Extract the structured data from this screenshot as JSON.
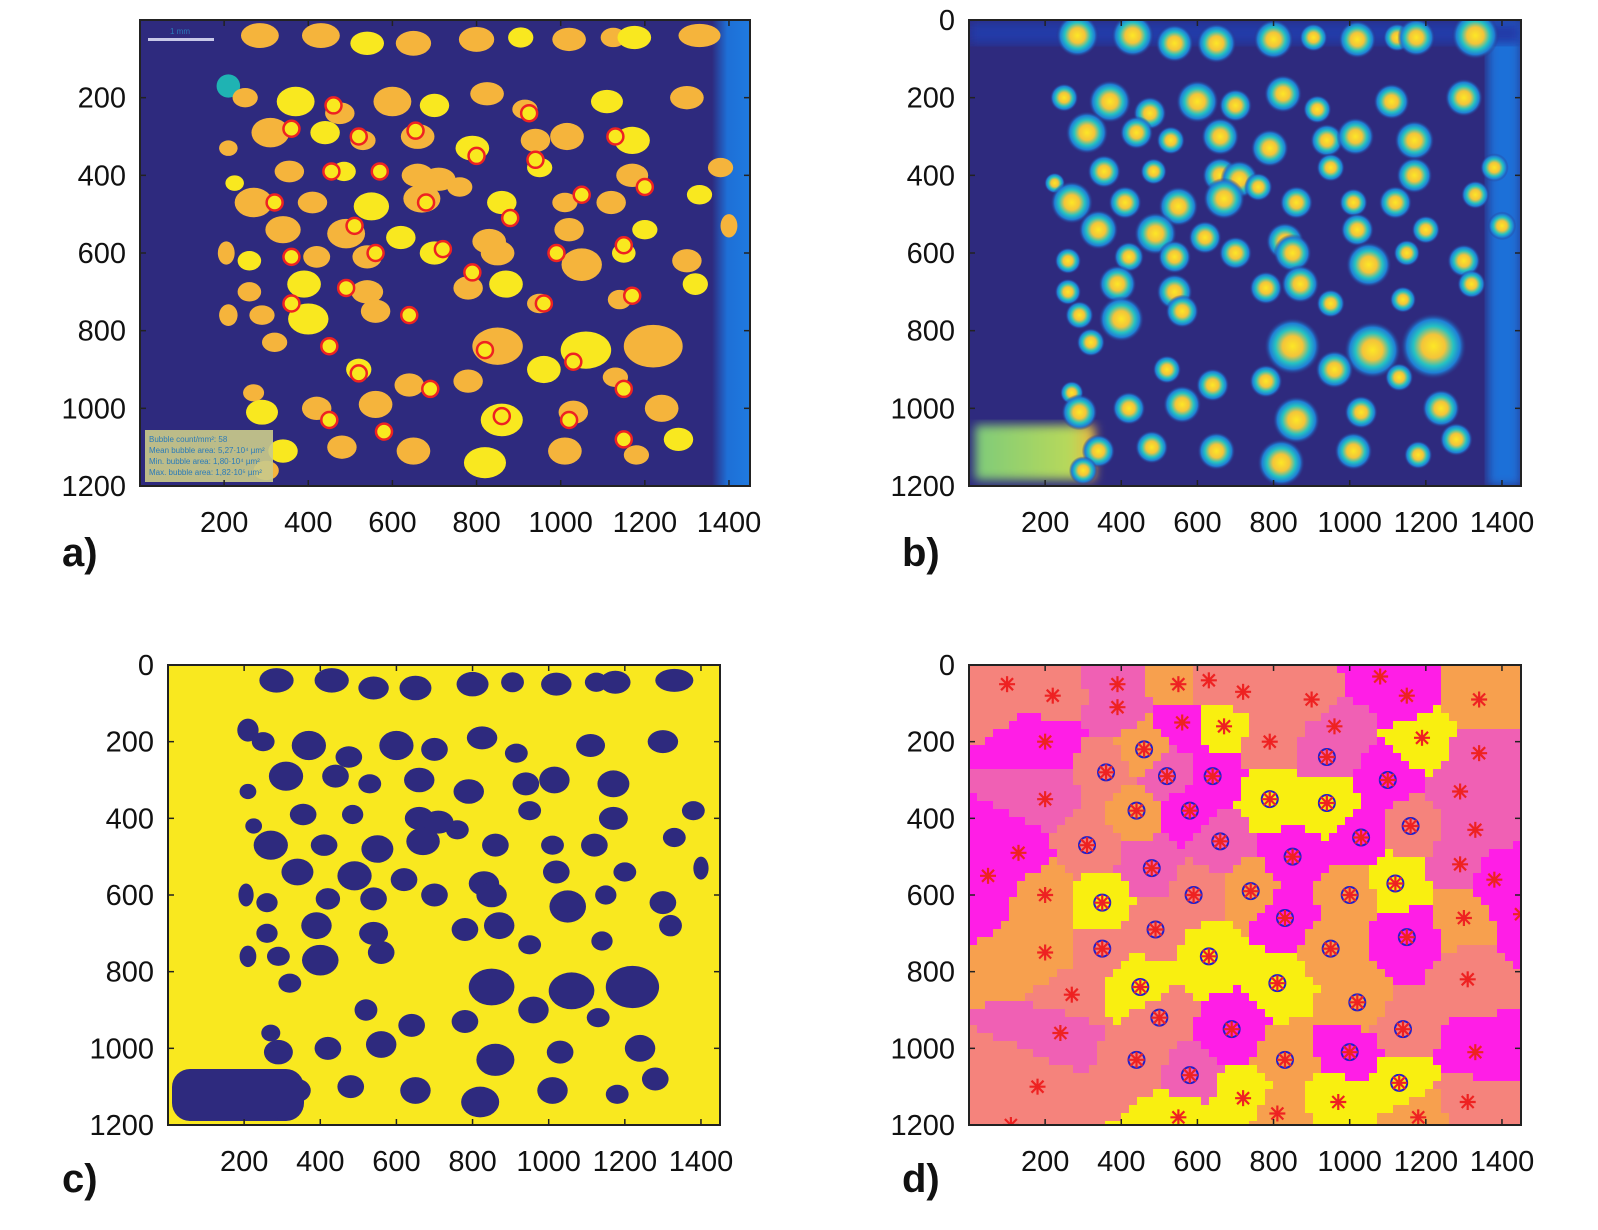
{
  "figure": {
    "panels": [
      {
        "id": "a",
        "label": "a)"
      },
      {
        "id": "b",
        "label": "b)"
      },
      {
        "id": "c",
        "label": "c)"
      },
      {
        "id": "d",
        "label": "d)"
      }
    ]
  },
  "colors": {
    "background_dark": "#2e2a7e",
    "bubble_orange": "#f5b43c",
    "bubble_yellow": "#f9e81f",
    "marker_red": "#ee2222",
    "marker_blue": "#2020cc",
    "edge_blue": "#1f6fd8",
    "cell_magenta": "#ff1ee6",
    "cell_pink": "#f060b4",
    "cell_salmon": "#f5837c",
    "cell_orange": "#f7a04e",
    "cell_yellow": "#f9ef10"
  },
  "panel_a": {
    "legend_lines": [
      "Bubble count/mm²: 58",
      "Mean bubble area: 5,27·10⁴ µm²",
      "Min. bubble area: 1,80·10⁴ µm²",
      "Max. bubble area: 1,82·10⁵ µm²"
    ],
    "scale_bar_label": "1 mm"
  },
  "chart_data": [
    {
      "panel": "a",
      "type": "heatmap",
      "title": "",
      "xlabel": "",
      "ylabel": "",
      "xlim": [
        0,
        1450
      ],
      "ylim": [
        1200,
        0
      ],
      "xticks": [
        200,
        400,
        600,
        800,
        1000,
        1200,
        1400
      ],
      "yticks": [
        200,
        400,
        600,
        800,
        1000,
        1200
      ],
      "grid": false,
      "bubbles": [
        [
          210,
          170,
          28,
          30
        ],
        [
          285,
          40,
          45,
          32
        ],
        [
          430,
          40,
          45,
          32
        ],
        [
          540,
          60,
          40,
          30
        ],
        [
          650,
          60,
          42,
          32
        ],
        [
          800,
          50,
          42,
          32
        ],
        [
          905,
          45,
          30,
          26
        ],
        [
          1020,
          50,
          40,
          30
        ],
        [
          1125,
          45,
          30,
          25
        ],
        [
          1175,
          45,
          40,
          30
        ],
        [
          1330,
          40,
          50,
          30
        ],
        [
          250,
          200,
          30,
          25
        ],
        [
          370,
          210,
          45,
          38
        ],
        [
          475,
          240,
          35,
          28
        ],
        [
          600,
          210,
          45,
          38
        ],
        [
          700,
          220,
          35,
          30
        ],
        [
          825,
          190,
          40,
          30
        ],
        [
          915,
          230,
          30,
          25
        ],
        [
          1110,
          210,
          38,
          30
        ],
        [
          1300,
          200,
          40,
          30
        ],
        [
          310,
          290,
          45,
          38
        ],
        [
          440,
          290,
          35,
          30
        ],
        [
          530,
          310,
          30,
          25
        ],
        [
          660,
          300,
          40,
          32
        ],
        [
          790,
          330,
          40,
          32
        ],
        [
          940,
          310,
          35,
          30
        ],
        [
          1015,
          300,
          40,
          35
        ],
        [
          1170,
          310,
          42,
          35
        ],
        [
          210,
          330,
          22,
          20
        ],
        [
          355,
          390,
          35,
          28
        ],
        [
          485,
          390,
          28,
          25
        ],
        [
          660,
          400,
          38,
          30
        ],
        [
          710,
          410,
          40,
          30
        ],
        [
          950,
          380,
          30,
          25
        ],
        [
          1170,
          400,
          38,
          30
        ],
        [
          1380,
          380,
          30,
          25
        ],
        [
          225,
          420,
          22,
          20
        ],
        [
          270,
          470,
          45,
          38
        ],
        [
          410,
          470,
          35,
          28
        ],
        [
          550,
          480,
          42,
          36
        ],
        [
          670,
          460,
          44,
          36
        ],
        [
          760,
          430,
          30,
          25
        ],
        [
          860,
          470,
          35,
          30
        ],
        [
          1010,
          470,
          30,
          25
        ],
        [
          1120,
          470,
          35,
          30
        ],
        [
          1330,
          450,
          30,
          25
        ],
        [
          340,
          540,
          42,
          35
        ],
        [
          490,
          550,
          45,
          38
        ],
        [
          620,
          560,
          35,
          30
        ],
        [
          830,
          570,
          40,
          32
        ],
        [
          1020,
          540,
          35,
          30
        ],
        [
          1200,
          540,
          30,
          25
        ],
        [
          1400,
          530,
          20,
          30
        ],
        [
          205,
          600,
          20,
          30
        ],
        [
          260,
          620,
          28,
          25
        ],
        [
          420,
          610,
          32,
          28
        ],
        [
          540,
          610,
          35,
          30
        ],
        [
          700,
          600,
          35,
          30
        ],
        [
          850,
          600,
          40,
          32
        ],
        [
          1050,
          630,
          48,
          42
        ],
        [
          1150,
          600,
          28,
          25
        ],
        [
          1300,
          620,
          35,
          30
        ],
        [
          260,
          700,
          28,
          25
        ],
        [
          390,
          680,
          40,
          35
        ],
        [
          540,
          700,
          38,
          30
        ],
        [
          780,
          690,
          35,
          30
        ],
        [
          870,
          680,
          40,
          35
        ],
        [
          950,
          730,
          30,
          25
        ],
        [
          1140,
          720,
          28,
          25
        ],
        [
          1320,
          680,
          30,
          28
        ],
        [
          210,
          760,
          22,
          28
        ],
        [
          290,
          760,
          30,
          25
        ],
        [
          400,
          770,
          48,
          40
        ],
        [
          560,
          750,
          35,
          30
        ],
        [
          850,
          840,
          60,
          48
        ],
        [
          1060,
          850,
          60,
          48
        ],
        [
          1220,
          840,
          70,
          55
        ],
        [
          320,
          830,
          30,
          25
        ],
        [
          520,
          900,
          30,
          28
        ],
        [
          640,
          940,
          35,
          30
        ],
        [
          780,
          930,
          35,
          30
        ],
        [
          960,
          900,
          40,
          35
        ],
        [
          1130,
          920,
          30,
          25
        ],
        [
          270,
          960,
          25,
          22
        ],
        [
          290,
          1010,
          38,
          32
        ],
        [
          420,
          1000,
          35,
          30
        ],
        [
          560,
          990,
          40,
          35
        ],
        [
          860,
          1030,
          50,
          42
        ],
        [
          1030,
          1010,
          35,
          30
        ],
        [
          1240,
          1000,
          40,
          35
        ],
        [
          340,
          1110,
          35,
          30
        ],
        [
          480,
          1100,
          35,
          30
        ],
        [
          650,
          1110,
          40,
          35
        ],
        [
          820,
          1140,
          50,
          40
        ],
        [
          1010,
          1110,
          40,
          35
        ],
        [
          1180,
          1120,
          30,
          25
        ],
        [
          1280,
          1080,
          35,
          30
        ],
        [
          300,
          1160,
          30,
          25
        ]
      ],
      "markers": [
        [
          460,
          220
        ],
        [
          925,
          240
        ],
        [
          360,
          280
        ],
        [
          655,
          285
        ],
        [
          520,
          300
        ],
        [
          1130,
          300
        ],
        [
          800,
          350
        ],
        [
          940,
          360
        ],
        [
          455,
          390
        ],
        [
          570,
          390
        ],
        [
          320,
          470
        ],
        [
          680,
          470
        ],
        [
          1050,
          450
        ],
        [
          1200,
          430
        ],
        [
          510,
          530
        ],
        [
          880,
          510
        ],
        [
          360,
          610
        ],
        [
          560,
          600
        ],
        [
          720,
          590
        ],
        [
          990,
          600
        ],
        [
          1150,
          580
        ],
        [
          790,
          650
        ],
        [
          960,
          730
        ],
        [
          360,
          730
        ],
        [
          490,
          690
        ],
        [
          640,
          760
        ],
        [
          1170,
          710
        ],
        [
          450,
          840
        ],
        [
          820,
          850
        ],
        [
          1030,
          880
        ],
        [
          520,
          910
        ],
        [
          690,
          950
        ],
        [
          1150,
          950
        ],
        [
          450,
          1030
        ],
        [
          860,
          1020
        ],
        [
          1020,
          1030
        ],
        [
          580,
          1060
        ],
        [
          1150,
          1080
        ]
      ]
    },
    {
      "panel": "b",
      "type": "heatmap",
      "title": "",
      "xlabel": "",
      "ylabel": "",
      "xlim": [
        0,
        1450
      ],
      "ylim": [
        1200,
        0
      ],
      "xticks": [
        200,
        400,
        600,
        800,
        1000,
        1200,
        1400
      ],
      "yticks": [
        0,
        200,
        400,
        600,
        800,
        1000,
        1200
      ],
      "grid": false
    },
    {
      "panel": "c",
      "type": "heatmap",
      "title": "",
      "xlabel": "",
      "ylabel": "",
      "xlim": [
        0,
        1450
      ],
      "ylim": [
        1200,
        0
      ],
      "xticks": [
        200,
        400,
        600,
        800,
        1000,
        1200,
        1400
      ],
      "yticks": [
        0,
        200,
        400,
        600,
        800,
        1000,
        1200
      ],
      "grid": false
    },
    {
      "panel": "d",
      "type": "heatmap",
      "title": "",
      "xlabel": "",
      "ylabel": "",
      "xlim": [
        0,
        1450
      ],
      "ylim": [
        1200,
        0
      ],
      "xticks": [
        200,
        400,
        600,
        800,
        1000,
        1200,
        1400
      ],
      "yticks": [
        0,
        200,
        400,
        600,
        800,
        1000,
        1200
      ],
      "grid": false,
      "seeds": [
        [
          100,
          50,
          "salmon",
          0
        ],
        [
          220,
          80,
          "salmon",
          0
        ],
        [
          390,
          50,
          "pink",
          0
        ],
        [
          550,
          50,
          "orange",
          0
        ],
        [
          630,
          40,
          "salmon",
          0
        ],
        [
          720,
          70,
          "salmon",
          0
        ],
        [
          900,
          90,
          "salmon",
          0
        ],
        [
          1080,
          30,
          "magenta",
          0
        ],
        [
          1150,
          80,
          "magenta",
          0
        ],
        [
          1340,
          90,
          "orange",
          0
        ],
        [
          200,
          200,
          "magenta",
          0
        ],
        [
          390,
          110,
          "pink",
          0
        ],
        [
          560,
          150,
          "magenta",
          0
        ],
        [
          670,
          160,
          "yellow",
          0
        ],
        [
          790,
          200,
          "salmon",
          0
        ],
        [
          960,
          160,
          "pink",
          0
        ],
        [
          1190,
          190,
          "yellow",
          0
        ],
        [
          1340,
          230,
          "pink",
          0
        ],
        [
          360,
          280,
          "salmon",
          1
        ],
        [
          460,
          220,
          "orange",
          1
        ],
        [
          520,
          290,
          "pink",
          1
        ],
        [
          640,
          290,
          "magenta",
          1
        ],
        [
          940,
          240,
          "pink",
          1
        ],
        [
          1100,
          300,
          "magenta",
          1
        ],
        [
          200,
          350,
          "pink",
          0
        ],
        [
          440,
          380,
          "orange",
          1
        ],
        [
          580,
          380,
          "magenta",
          1
        ],
        [
          790,
          350,
          "yellow",
          1
        ],
        [
          940,
          360,
          "yellow",
          1
        ],
        [
          1160,
          420,
          "salmon",
          1
        ],
        [
          1290,
          330,
          "pink",
          0
        ],
        [
          130,
          490,
          "magenta",
          0
        ],
        [
          310,
          470,
          "salmon",
          1
        ],
        [
          480,
          530,
          "pink",
          1
        ],
        [
          660,
          460,
          "pink",
          1
        ],
        [
          850,
          500,
          "magenta",
          1
        ],
        [
          1030,
          450,
          "magenta",
          1
        ],
        [
          1330,
          430,
          "pink",
          0
        ],
        [
          50,
          550,
          "magenta",
          0
        ],
        [
          200,
          600,
          "orange",
          0
        ],
        [
          350,
          620,
          "yellow",
          1
        ],
        [
          590,
          600,
          "salmon",
          1
        ],
        [
          740,
          590,
          "orange",
          1
        ],
        [
          1000,
          600,
          "orange",
          1
        ],
        [
          1120,
          570,
          "yellow",
          1
        ],
        [
          1290,
          520,
          "pink",
          0
        ],
        [
          1380,
          560,
          "magenta",
          0
        ],
        [
          200,
          750,
          "orange",
          0
        ],
        [
          350,
          740,
          "salmon",
          1
        ],
        [
          490,
          690,
          "salmon",
          1
        ],
        [
          830,
          660,
          "magenta",
          1
        ],
        [
          1150,
          710,
          "magenta",
          1
        ],
        [
          1300,
          660,
          "orange",
          0
        ],
        [
          1450,
          650,
          "magenta",
          0
        ],
        [
          270,
          860,
          "salmon",
          0
        ],
        [
          450,
          840,
          "yellow",
          1
        ],
        [
          630,
          760,
          "yellow",
          1
        ],
        [
          810,
          830,
          "yellow",
          1
        ],
        [
          950,
          740,
          "orange",
          1
        ],
        [
          1020,
          880,
          "orange",
          1
        ],
        [
          1310,
          820,
          "salmon",
          0
        ],
        [
          240,
          960,
          "pink",
          0
        ],
        [
          500,
          920,
          "salmon",
          1
        ],
        [
          690,
          950,
          "magenta",
          1
        ],
        [
          1140,
          950,
          "salmon",
          1
        ],
        [
          1330,
          1010,
          "magenta",
          0
        ],
        [
          180,
          1100,
          "salmon",
          0
        ],
        [
          440,
          1030,
          "salmon",
          1
        ],
        [
          580,
          1070,
          "pink",
          1
        ],
        [
          830,
          1030,
          "orange",
          1
        ],
        [
          1000,
          1010,
          "magenta",
          1
        ],
        [
          1130,
          1090,
          "yellow",
          1
        ],
        [
          110,
          1200,
          "salmon",
          0
        ],
        [
          550,
          1180,
          "yellow",
          0
        ],
        [
          720,
          1130,
          "yellow",
          0
        ],
        [
          810,
          1170,
          "orange",
          0
        ],
        [
          970,
          1140,
          "yellow",
          0
        ],
        [
          1180,
          1180,
          "orange",
          0
        ],
        [
          1310,
          1140,
          "salmon",
          0
        ]
      ]
    }
  ]
}
